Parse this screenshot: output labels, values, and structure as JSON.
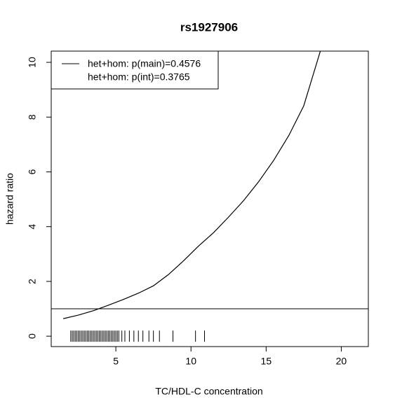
{
  "chart_data": {
    "type": "line",
    "title": "rs1927906",
    "xlabel": "TC/HDL-C concentration",
    "ylabel": "hazard ratio",
    "xlim": [
      0.7,
      21.8
    ],
    "ylim": [
      -0.38,
      10.41
    ],
    "xticks": [
      5,
      10,
      15,
      20
    ],
    "yticks": [
      0,
      2,
      4,
      6,
      8,
      10
    ],
    "x": [
      1.5,
      2.5,
      3.5,
      4.5,
      5.5,
      6.5,
      7.5,
      8.5,
      9.5,
      10.5,
      11.5,
      12.5,
      13.5,
      14.5,
      15.5,
      16.5,
      17.5,
      18.6
    ],
    "series": [
      {
        "name": "het+hom: p(main)=0.4576",
        "color": "#000000",
        "values": [
          0.64,
          0.77,
          0.93,
          1.13,
          1.34,
          1.57,
          1.84,
          2.25,
          2.75,
          3.29,
          3.78,
          4.35,
          4.95,
          5.64,
          6.42,
          7.32,
          8.41,
          10.4
        ]
      }
    ],
    "legend_extra": "het+hom: p(int)=0.3765",
    "legend_position": "top-left",
    "reference_line": 1,
    "rug": [
      2.0,
      2.1,
      2.2,
      2.3,
      2.4,
      2.5,
      2.6,
      2.7,
      2.8,
      2.9,
      3.0,
      3.1,
      3.2,
      3.3,
      3.4,
      3.5,
      3.6,
      3.7,
      3.8,
      3.9,
      4.0,
      4.1,
      4.2,
      4.3,
      4.4,
      4.5,
      4.6,
      4.7,
      4.8,
      4.9,
      5.0,
      5.1,
      5.2,
      5.4,
      5.6,
      5.9,
      6.2,
      6.5,
      6.8,
      7.2,
      7.5,
      7.9,
      8.8,
      10.3,
      10.9
    ]
  }
}
